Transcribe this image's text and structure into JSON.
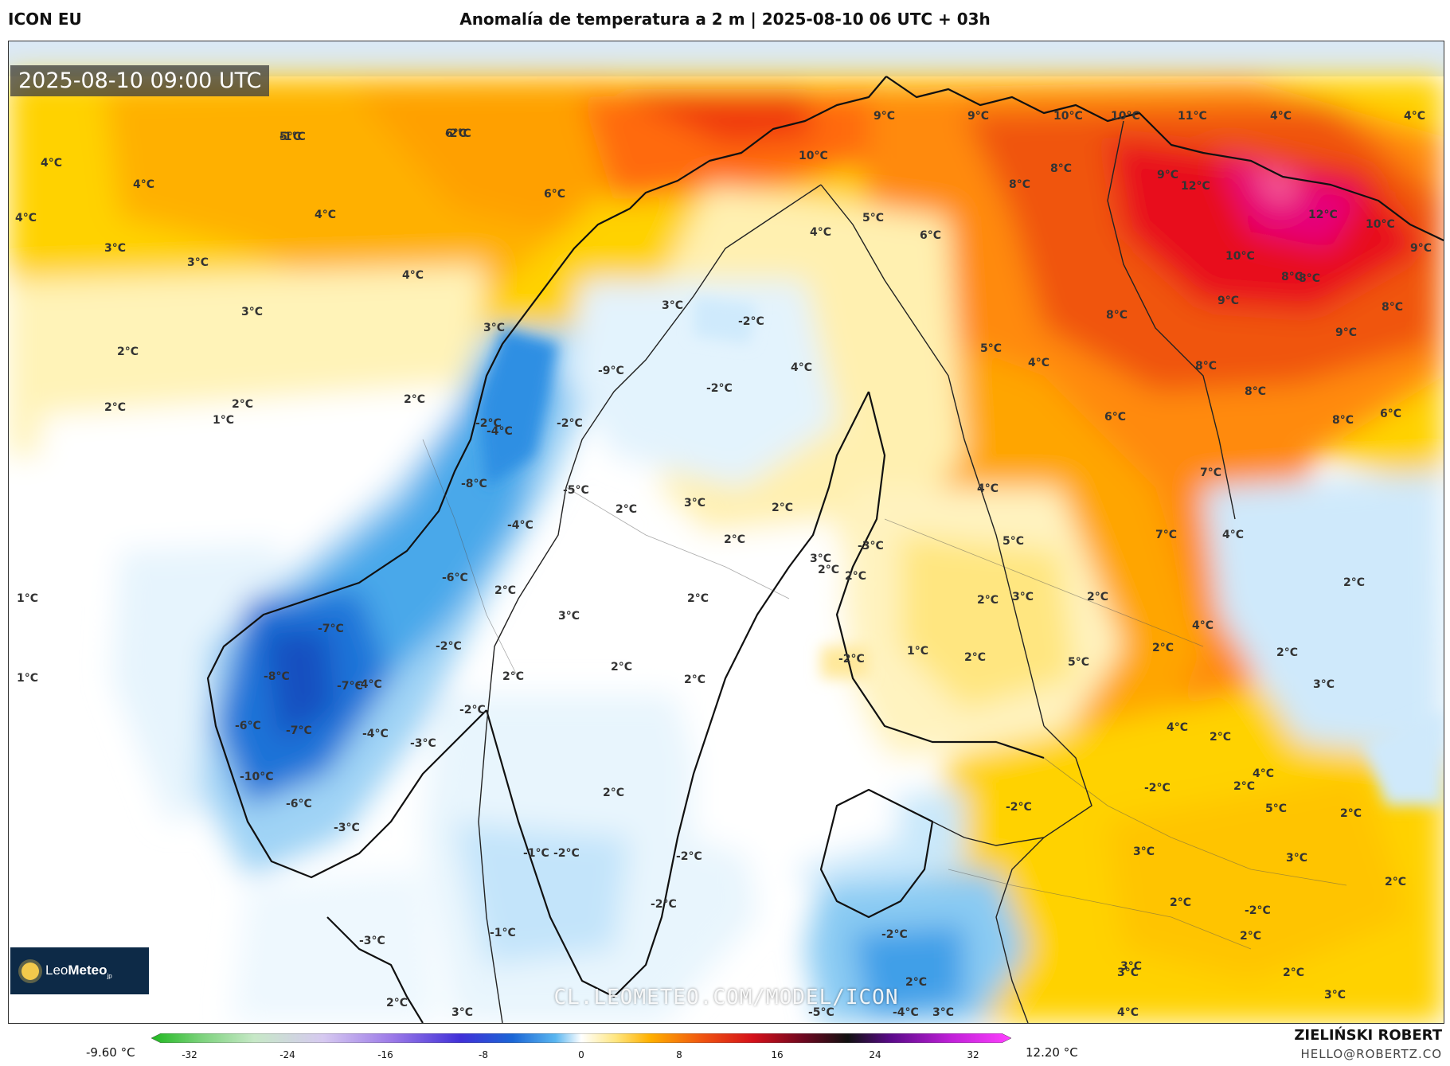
{
  "header": {
    "model": "ICON EU",
    "title": "Anomalía de temperatura a 2 m | 2025-08-10 06 UTC + 03h"
  },
  "map": {
    "valid_time": "2025-08-10 09:00 UTC",
    "watermark": "CL.LEOMETEO.COM/MODEL/ICON",
    "logo": {
      "name": "LeoMeteo",
      "part1": "Leo",
      "part2": "Meteo",
      "suffix": "jp"
    },
    "labels": [
      "5°C",
      "6°C",
      "4°C",
      "4°C",
      "4°C",
      "6°C",
      "3°C",
      "3°C",
      "4°C",
      "4°C",
      "3°C",
      "3°C",
      "2°C",
      "2°C",
      "2°C",
      "1°C",
      "2°C",
      "9°C",
      "9°C",
      "10°C",
      "10°C",
      "11°C",
      "4°C",
      "4°C",
      "10°C",
      "8°C",
      "8°C",
      "9°C",
      "12°C",
      "12°C",
      "10°C",
      "9°C",
      "8°C",
      "10°C",
      "8°C",
      "9°C",
      "8°C",
      "8°C",
      "9°C",
      "8°C",
      "8°C",
      "8°C",
      "6°C",
      "5°C",
      "4°C",
      "6°C",
      "5°C",
      "4°C",
      "7°C",
      "6°C",
      "4°C",
      "7°C",
      "-2°C",
      "-2°C",
      "-2°C",
      "-2°C",
      "3°C",
      "4°C",
      "-9°C",
      "-8°C",
      "-5°C",
      "-4°C",
      "-4°C",
      "2°C",
      "3°C",
      "2°C",
      "2°C",
      "2°C",
      "1°C",
      "1°C",
      "-7°C",
      "-8°C",
      "-7°C",
      "-6°C",
      "-7°C",
      "-10°C",
      "-6°C",
      "-3°C",
      "-4°C",
      "-3°C",
      "-4°C",
      "-2°C",
      "-2°C",
      "2°C",
      "2°C",
      "2°C",
      "2°C",
      "-6°C",
      "3°C",
      "2°C",
      "2°C",
      "3°C",
      "4°C",
      "5°C",
      "2°C",
      "3°C",
      "-2°C",
      "-3°C",
      "2°C",
      "1°C",
      "2°C",
      "4°C",
      "5°C",
      "2°C",
      "2°C",
      "4°C",
      "4°C",
      "2°C",
      "2°C",
      "5°C",
      "2°C",
      "3°C",
      "2°C",
      "-1°C",
      "-2°C",
      "-1°C",
      "-2°C",
      "-3°C",
      "-2°C",
      "-2°C",
      "2°C",
      "3°C",
      "3°C",
      "2°C",
      "-2°C",
      "-4°C",
      "-5°C",
      "-2°C",
      "-2°C",
      "2°C",
      "3°C",
      "2°C",
      "3°C",
      "2°C",
      "3°C",
      "4°C",
      "3°C",
      "2°C",
      "3°C",
      "2°C",
      "-1°C",
      "-2°C"
    ]
  },
  "colorbar": {
    "min_label": "-9.60 °C",
    "max_label": "12.20 °C",
    "ticks": [
      "-32",
      "-24",
      "-16",
      "-8",
      "0",
      "8",
      "16",
      "24",
      "32"
    ]
  },
  "credits": {
    "author": "ZIELIŃSKI ROBERT",
    "email": "HELLO@ROBERTZ.CO"
  },
  "colors": {
    "warm_strong": "#e8101a",
    "warm": "#f57a14",
    "warm_light": "#ffc400",
    "neutral_warm": "#fff2b0",
    "cold_light": "#c8e8fb",
    "cold": "#3a9ee8",
    "cold_strong": "#1b66d6",
    "sea_top": "#dbe9f6"
  }
}
